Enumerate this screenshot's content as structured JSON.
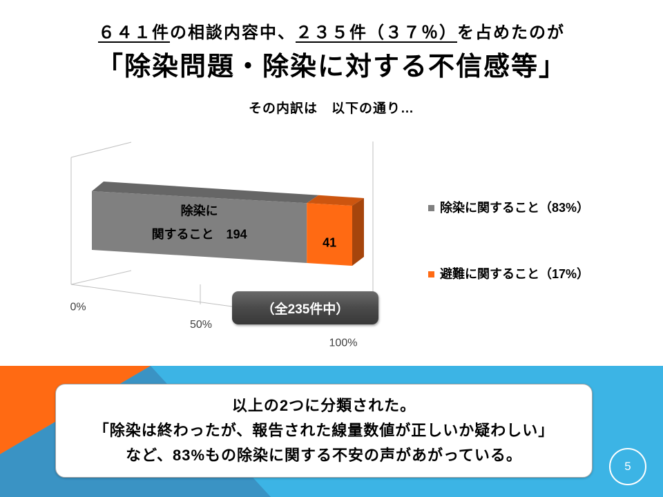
{
  "header": {
    "line1": [
      {
        "text": "６４１件",
        "underline": true
      },
      {
        "text": "の相談内容中、",
        "underline": false
      },
      {
        "text": "２３５件（３７％）",
        "underline": true
      },
      {
        "text": "を占めたのが",
        "underline": false
      }
    ],
    "line2": "「除染問題・除染に対する不信感等」"
  },
  "subtitle": "その内訳は　以下の通り…",
  "chart_data": {
    "type": "bar",
    "orientation": "horizontal",
    "stacked": "percent",
    "three_d": true,
    "series": [
      {
        "name": "除染に関すること（83%）",
        "value": 194,
        "data_label_lines": [
          "除染に",
          "関すること　194"
        ],
        "color": "#808080"
      },
      {
        "name": "避難に関すること（17%）",
        "value": 41,
        "data_label_lines": [
          "41"
        ],
        "color": "#ff6a13"
      }
    ],
    "x_ticks": [
      {
        "value": 0,
        "label": "0%"
      },
      {
        "value": 50,
        "label": "50%"
      },
      {
        "value": 100,
        "label": "100%"
      }
    ],
    "xlim": [
      0,
      100
    ],
    "grid": true,
    "legend": "right",
    "annotation": "（全235件中）"
  },
  "summary": {
    "lines": [
      "以上の2つに分類された。",
      "「除染は終わったが、報告された線量数値が正しいか疑わしい」",
      "など、83%もの除染に関する不安の声があがっている。"
    ]
  },
  "page_number": "5",
  "theme": {
    "orange": "#ff6a13",
    "band_blue": "#3cb4e5",
    "band_blue_dark": "#3a93c4"
  }
}
